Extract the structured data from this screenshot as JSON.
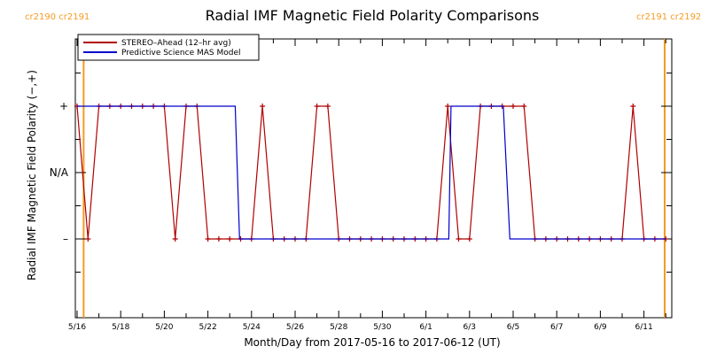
{
  "chart_data": {
    "type": "line",
    "title": "Radial IMF Magnetic Field Polarity Comparisons",
    "xlabel": "Month/Day from 2017-05-16 to 2017-06-12 (UT)",
    "ylabel": "Radial IMF Magnetic Field Polarity (−,+)",
    "x_range_days": [
      0,
      27.2
    ],
    "x_ticks": [
      {
        "day": 0,
        "label": "5/16"
      },
      {
        "day": 2,
        "label": "5/18"
      },
      {
        "day": 4,
        "label": "5/20"
      },
      {
        "day": 6,
        "label": "5/22"
      },
      {
        "day": 8,
        "label": "5/24"
      },
      {
        "day": 10,
        "label": "5/26"
      },
      {
        "day": 12,
        "label": "5/28"
      },
      {
        "day": 14,
        "label": "5/30"
      },
      {
        "day": 16,
        "label": "6/1"
      },
      {
        "day": 18,
        "label": "6/3"
      },
      {
        "day": 20,
        "label": "6/5"
      },
      {
        "day": 22,
        "label": "6/7"
      },
      {
        "day": 24,
        "label": "6/9"
      },
      {
        "day": 26,
        "label": "6/11"
      }
    ],
    "y_ticks": [
      {
        "value": 1,
        "label": "+"
      },
      {
        "value": 0,
        "label": "N/A"
      },
      {
        "value": -1,
        "label": "–"
      }
    ],
    "y_range": [
      -2,
      2
    ],
    "carrington_labels": {
      "left": "cr2190  cr2191",
      "right": "cr2191  cr2192"
    },
    "carrington_lines_days": [
      0.3,
      26.95
    ],
    "legend": {
      "placement": "top-left",
      "entries": [
        {
          "label": "STEREO–Ahead (12–hr avg)",
          "color": "#b00000"
        },
        {
          "label": "Predictive Science MAS Model",
          "color": "#0000cc"
        }
      ]
    },
    "series": [
      {
        "name": "STEREO–Ahead (12–hr avg)",
        "color": "#b00000",
        "markers": true,
        "points": [
          [
            0.0,
            1
          ],
          [
            0.5,
            -1
          ],
          [
            1.0,
            1
          ],
          [
            1.5,
            1
          ],
          [
            2.0,
            1
          ],
          [
            2.5,
            1
          ],
          [
            3.0,
            1
          ],
          [
            3.5,
            1
          ],
          [
            4.0,
            1
          ],
          [
            4.5,
            -1
          ],
          [
            5.0,
            1
          ],
          [
            5.5,
            1
          ],
          [
            6.0,
            -1
          ],
          [
            6.5,
            -1
          ],
          [
            7.0,
            -1
          ],
          [
            7.5,
            -1
          ],
          [
            8.0,
            -1
          ],
          [
            8.5,
            1
          ],
          [
            9.0,
            -1
          ],
          [
            9.5,
            -1
          ],
          [
            10.0,
            -1
          ],
          [
            10.5,
            -1
          ],
          [
            11.0,
            1
          ],
          [
            11.5,
            1
          ],
          [
            12.0,
            -1
          ],
          [
            12.5,
            -1
          ],
          [
            13.0,
            -1
          ],
          [
            13.5,
            -1
          ],
          [
            14.0,
            -1
          ],
          [
            14.5,
            -1
          ],
          [
            15.0,
            -1
          ],
          [
            15.5,
            -1
          ],
          [
            16.0,
            -1
          ],
          [
            16.5,
            -1
          ],
          [
            17.0,
            1
          ],
          [
            17.5,
            -1
          ],
          [
            18.0,
            -1
          ],
          [
            18.5,
            1
          ],
          [
            19.0,
            1
          ],
          [
            19.5,
            1
          ],
          [
            20.0,
            1
          ],
          [
            20.5,
            1
          ],
          [
            21.0,
            -1
          ],
          [
            21.5,
            -1
          ],
          [
            22.0,
            -1
          ],
          [
            22.5,
            -1
          ],
          [
            23.0,
            -1
          ],
          [
            23.5,
            -1
          ],
          [
            24.0,
            -1
          ],
          [
            24.5,
            -1
          ],
          [
            25.0,
            -1
          ],
          [
            25.5,
            1
          ],
          [
            26.0,
            -1
          ],
          [
            26.5,
            -1
          ],
          [
            27.0,
            -1
          ]
        ]
      },
      {
        "name": "Predictive Science MAS Model",
        "color": "#0000cc",
        "markers": false,
        "points": [
          [
            0.0,
            1
          ],
          [
            7.25,
            1
          ],
          [
            7.45,
            -1
          ],
          [
            17.05,
            -1
          ],
          [
            17.15,
            1
          ],
          [
            19.55,
            1
          ],
          [
            19.85,
            -1
          ],
          [
            27.0,
            -1
          ]
        ]
      }
    ]
  }
}
